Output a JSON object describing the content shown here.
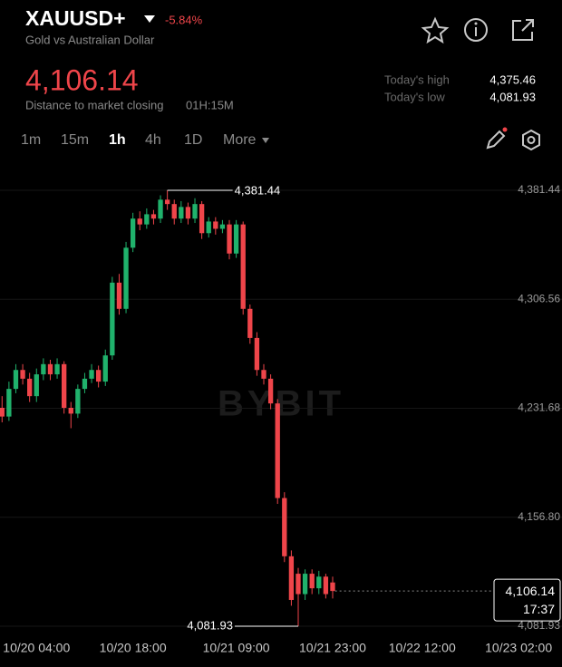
{
  "header": {
    "symbol": "XAUUSD+",
    "change": "-5.84%",
    "name": "Gold vs Australian Dollar",
    "price": "4,106.14",
    "market_close_label": "Distance to market closing",
    "market_close_time": "01H:15M",
    "todays_high_label": "Today's high",
    "todays_high": "4,375.46",
    "todays_low_label": "Today's low",
    "todays_low": "4,081.93"
  },
  "intervals": [
    "1m",
    "15m",
    "1h",
    "4h",
    "1D",
    "More"
  ],
  "chart_data": {
    "type": "candlestick",
    "watermark": "BYBIT",
    "open": [
      4232,
      4226,
      4245,
      4258,
      4252,
      4240,
      4255,
      4262,
      4255,
      4262,
      4232,
      4228,
      4245,
      4252,
      4258,
      4250,
      4268,
      4318,
      4300,
      4342,
      4362,
      4358,
      4365,
      4362,
      4375,
      4372,
      4362,
      4370,
      4362,
      4372,
      4352,
      4360,
      4355,
      4358,
      4338,
      4358,
      4300,
      4280,
      4258,
      4252,
      4235,
      4170,
      4130,
      4118,
      4104,
      4118,
      4108,
      4116,
      4112
    ],
    "high": [
      4240,
      4250,
      4262,
      4262,
      4256,
      4259,
      4266,
      4265,
      4266,
      4264,
      4236,
      4248,
      4256,
      4262,
      4261,
      4272,
      4322,
      4324,
      4346,
      4366,
      4367,
      4369,
      4368,
      4378,
      4381.44,
      4375,
      4374,
      4373,
      4376,
      4374,
      4363,
      4363,
      4361,
      4361,
      4361,
      4360,
      4303,
      4284,
      4262,
      4255,
      4238,
      4174,
      4134,
      4122,
      4121,
      4121,
      4120,
      4118,
      4116
    ],
    "low": [
      4222,
      4223,
      4242,
      4248,
      4236,
      4236,
      4251,
      4251,
      4252,
      4228,
      4218,
      4225,
      4242,
      4249,
      4246,
      4247,
      4265,
      4296,
      4297,
      4339,
      4354,
      4355,
      4358,
      4359,
      4368,
      4358,
      4359,
      4358,
      4359,
      4348,
      4349,
      4351,
      4352,
      4334,
      4335,
      4296,
      4276,
      4254,
      4248,
      4231,
      4166,
      4126,
      4096,
      4081.93,
      4100,
      4104,
      4104,
      4101,
      4101
    ],
    "close": [
      4226,
      4245,
      4258,
      4252,
      4240,
      4255,
      4262,
      4255,
      4262,
      4232,
      4228,
      4245,
      4252,
      4258,
      4250,
      4268,
      4318,
      4300,
      4342,
      4362,
      4358,
      4365,
      4362,
      4375,
      4372,
      4362,
      4370,
      4362,
      4372,
      4352,
      4360,
      4355,
      4358,
      4338,
      4358,
      4300,
      4280,
      4258,
      4252,
      4235,
      4170,
      4130,
      4100,
      4104,
      4118,
      4108,
      4116,
      4104,
      4106.14
    ],
    "up_color": "#20b26c",
    "down_color": "#ef454a",
    "xlim": [
      -0.3,
      81.3
    ],
    "xticks": [
      {
        "value": 5,
        "label": "10/20 04:00"
      },
      {
        "value": 19,
        "label": "10/20 18:00"
      },
      {
        "value": 34,
        "label": "10/21 09:00"
      },
      {
        "value": 48,
        "label": "10/21 23:00"
      },
      {
        "value": 61,
        "label": "10/22 12:00"
      },
      {
        "value": 75,
        "label": "10/23 02:00"
      }
    ],
    "ylim": [
      4076.33,
      4400.12
    ],
    "yticks": [
      {
        "value": 4381.44,
        "label": "4,381.44"
      },
      {
        "value": 4306.56,
        "label": "4,306.56"
      },
      {
        "value": 4231.68,
        "label": "4,231.68"
      },
      {
        "value": 4156.8,
        "label": "4,156.80"
      },
      {
        "value": 4081.93,
        "label": "4,081.93"
      }
    ],
    "grid": true,
    "high_marker": {
      "value": 4381.44,
      "label": "4,381.44"
    },
    "low_marker": {
      "value": 4081.93,
      "label": "4,081.93"
    },
    "last_price": {
      "value": 4106.14,
      "label": "4,106.14"
    },
    "countdown": "17:37"
  }
}
